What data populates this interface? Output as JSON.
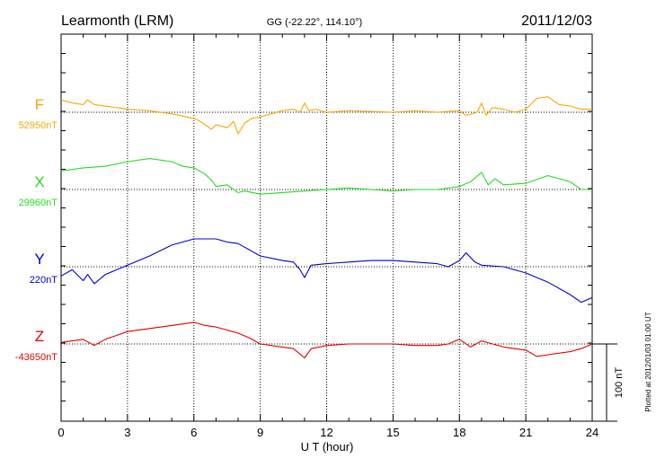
{
  "header": {
    "station": "Learmonth (LRM)",
    "coords": "GG (-22.22°, 114.10°)",
    "date": "2011/12/03"
  },
  "footer": {
    "plotted_note": "Plotted at 2012/01/03 01:00 UT",
    "scale_label": "100 nT"
  },
  "chart_data": {
    "type": "line",
    "title": "Learmonth (LRM)",
    "xlabel": "U T (hour)",
    "xlim": [
      0,
      24
    ],
    "xticks": [
      0,
      3,
      6,
      9,
      12,
      15,
      18,
      21,
      24
    ],
    "grid": "dotted, every 3 hours; dotted baseline per component",
    "scale_bar_nT": 100,
    "series": [
      {
        "name": "F",
        "baseline_label": "52950nT",
        "color": "#f5a800",
        "x": [
          0,
          0.5,
          1,
          1.2,
          1.5,
          2,
          3,
          4,
          5,
          5.5,
          6,
          6.3,
          6.6,
          6.8,
          7,
          7.5,
          7.8,
          8,
          8.3,
          8.6,
          9,
          9.5,
          10,
          10.5,
          10.8,
          11,
          11.2,
          11.5,
          12,
          13,
          14,
          15,
          16,
          17,
          17.5,
          18,
          18.3,
          18.8,
          19,
          19.2,
          19.5,
          20,
          20.5,
          21,
          21.5,
          22,
          22.5,
          23,
          23.5,
          24
        ],
        "y": [
          16,
          12,
          10,
          16,
          10,
          8,
          4,
          2,
          -2,
          -5,
          -8,
          -12,
          -18,
          -22,
          -16,
          -20,
          -12,
          -28,
          -14,
          -8,
          -6,
          -2,
          2,
          4,
          0,
          12,
          2,
          4,
          0,
          2,
          1,
          0,
          2,
          0,
          1,
          2,
          -4,
          0,
          12,
          -4,
          6,
          4,
          0,
          4,
          18,
          20,
          10,
          8,
          4,
          4
        ]
      },
      {
        "name": "X",
        "baseline_label": "29960nT",
        "color": "#22dd22",
        "x": [
          0,
          1,
          2,
          3,
          4,
          5,
          5.5,
          6,
          6.5,
          6.8,
          7,
          7.5,
          8,
          8.3,
          9,
          10,
          11,
          12,
          13,
          14,
          15,
          16,
          17,
          18,
          18.5,
          19,
          19.3,
          19.6,
          20,
          21,
          22,
          23,
          23.5,
          24
        ],
        "y": [
          24,
          28,
          30,
          36,
          40,
          36,
          30,
          28,
          20,
          12,
          4,
          6,
          -4,
          -2,
          -6,
          -4,
          -2,
          0,
          2,
          0,
          -2,
          0,
          0,
          4,
          10,
          22,
          6,
          14,
          6,
          8,
          18,
          10,
          0,
          0
        ]
      },
      {
        "name": "Y",
        "baseline_label": "220nT",
        "color": "#0000cc",
        "x": [
          0,
          0.5,
          1,
          1.2,
          1.5,
          2,
          3,
          4,
          5,
          6,
          7,
          7.5,
          8,
          9,
          10,
          10.5,
          10.8,
          11,
          11.3,
          12,
          13,
          14,
          15,
          16,
          17,
          17.5,
          18,
          18.3,
          18.7,
          19,
          20,
          21,
          22,
          23,
          23.5,
          24
        ],
        "y": [
          -12,
          -4,
          -18,
          -10,
          -22,
          -10,
          2,
          14,
          28,
          36,
          36,
          32,
          30,
          14,
          8,
          6,
          -4,
          -14,
          2,
          4,
          6,
          8,
          8,
          6,
          4,
          0,
          8,
          18,
          6,
          2,
          0,
          -8,
          -20,
          -36,
          -46,
          -40
        ]
      },
      {
        "name": "Z",
        "baseline_label": "-43650nT",
        "color": "#dd0000",
        "x": [
          0,
          1,
          1.5,
          2,
          3,
          4,
          5,
          6,
          6.5,
          7,
          7.5,
          8,
          8.5,
          9,
          10,
          10.5,
          11,
          11.3,
          12,
          13,
          14,
          15,
          16,
          17,
          17.5,
          18,
          18.5,
          19,
          19.5,
          20,
          21,
          21.5,
          22,
          23,
          23.5,
          24
        ],
        "y": [
          2,
          6,
          -2,
          6,
          16,
          20,
          24,
          28,
          24,
          22,
          18,
          14,
          8,
          0,
          -4,
          -6,
          -18,
          -6,
          -2,
          0,
          0,
          0,
          -2,
          -2,
          0,
          6,
          -4,
          4,
          0,
          -4,
          -8,
          -16,
          -14,
          -10,
          -6,
          0
        ]
      }
    ]
  }
}
